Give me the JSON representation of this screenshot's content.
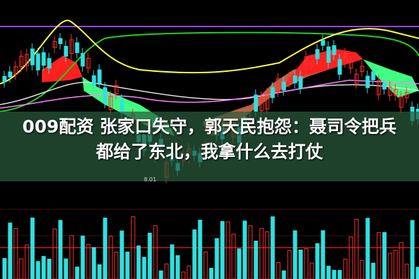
{
  "article": {
    "title_line1": "009配资 张家口失守，郭天民抱怨：聂司令把兵",
    "title_line2": "都给了东北，我拿什么去打仗"
  },
  "chart": {
    "low_label": "8.01",
    "colors": {
      "up": "#ff3030",
      "down": "#30e0e0",
      "ma_yellow": "#ffff40",
      "ma_green": "#20d020",
      "ma_purple": "#a040ff",
      "ribbon_red": "#ff2020",
      "ribbon_green": "#40ff80"
    }
  }
}
